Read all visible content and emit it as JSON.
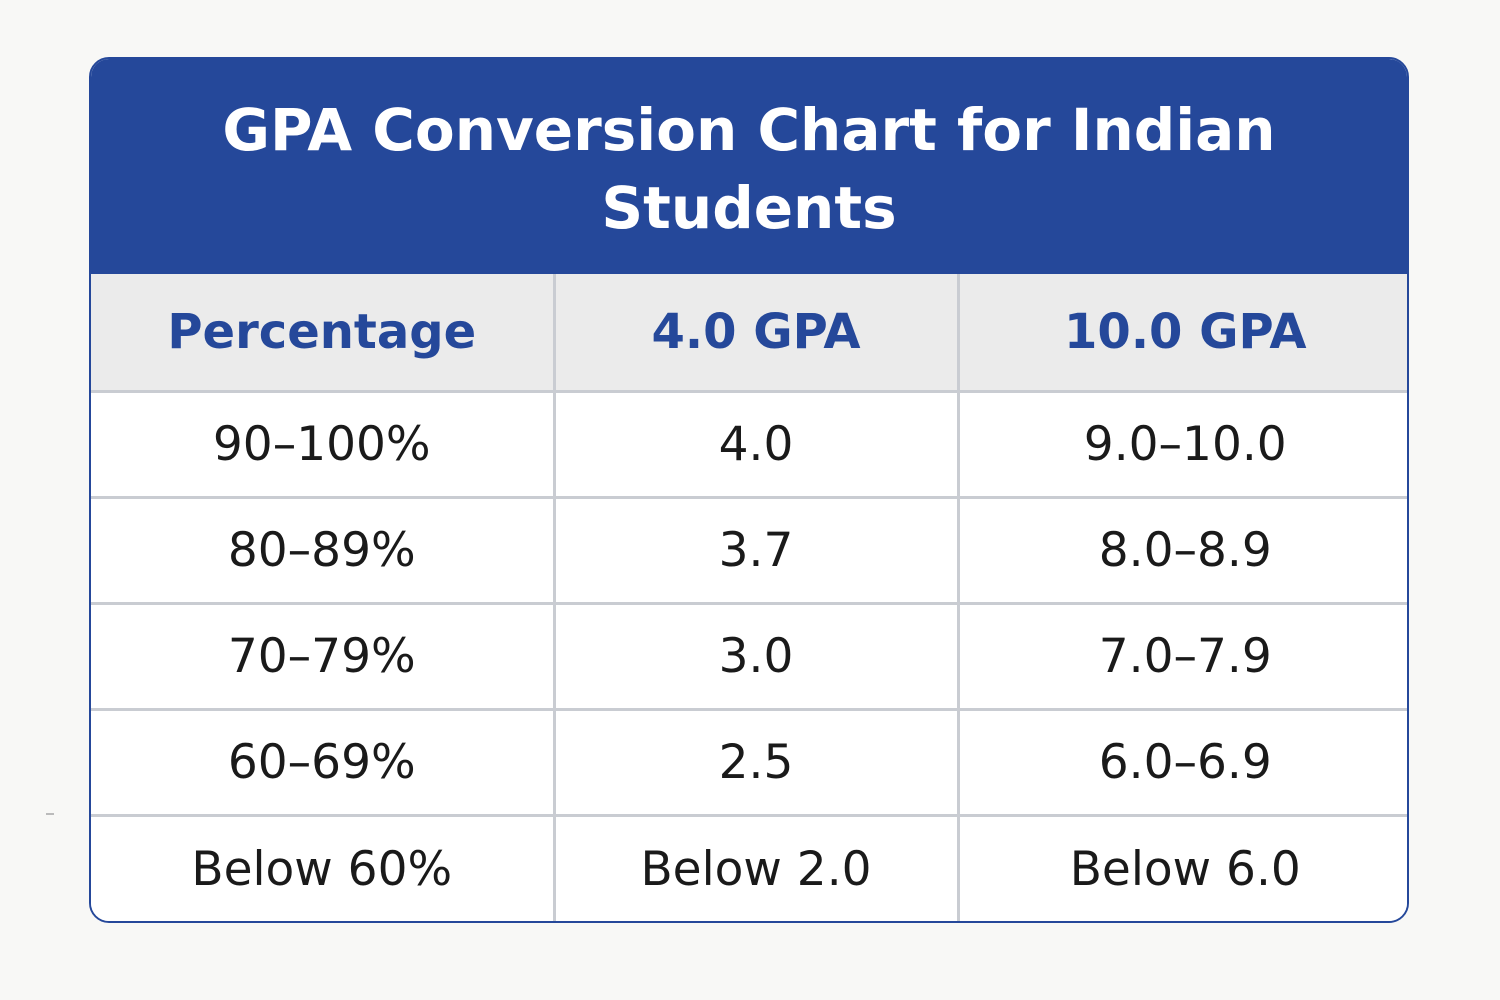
{
  "title": "GPA Conversion Chart for Indian Students",
  "headers": [
    "Percentage",
    "4.0 GPA",
    "10.0 GPA"
  ],
  "rows": [
    [
      "90–100%",
      "4.0",
      "9.0–10.0"
    ],
    [
      "80–89%",
      "3.7",
      "8.0–8.9"
    ],
    [
      "70–79%",
      "3.0",
      "7.0–7.9"
    ],
    [
      "60–69%",
      "2.5",
      "6.0–6.9"
    ],
    [
      "Below 60%",
      "Below 2.0",
      "Below 6.0"
    ]
  ],
  "colors": {
    "header_blue": "#25489a",
    "header_row_bg": "#ebebeb",
    "grid_line": "#c9ccd2",
    "cell_text": "#1a1a1a"
  }
}
